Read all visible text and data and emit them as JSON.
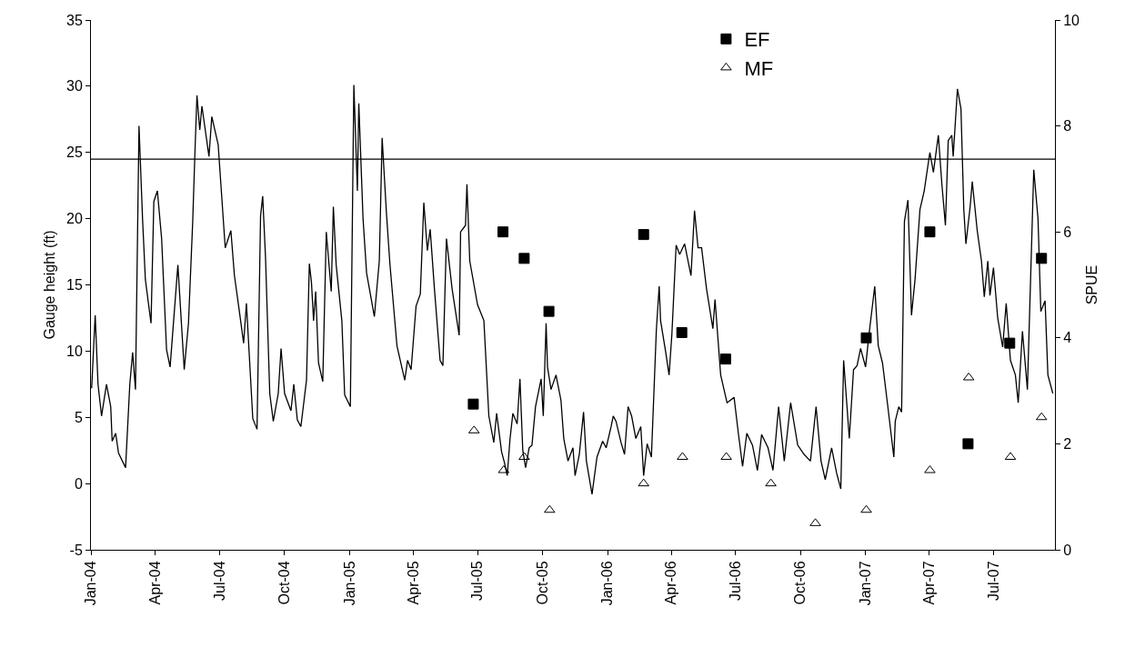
{
  "chart_data": {
    "type": "line",
    "xlabel": null,
    "ylabel": "Gauge height (ft)",
    "y2label": "SPUE",
    "xlim": [
      "2004-01-01",
      "2007-09-26"
    ],
    "xticks": [
      {
        "value": "2004-01-01",
        "label": "Jan-04"
      },
      {
        "value": "2004-04-01",
        "label": "Apr-04"
      },
      {
        "value": "2004-07-01",
        "label": "Jul-04"
      },
      {
        "value": "2004-10-01",
        "label": "Oct-04"
      },
      {
        "value": "2005-01-01",
        "label": "Jan-05"
      },
      {
        "value": "2005-04-01",
        "label": "Apr-05"
      },
      {
        "value": "2005-07-01",
        "label": "Jul-05"
      },
      {
        "value": "2005-10-01",
        "label": "Oct-05"
      },
      {
        "value": "2006-01-01",
        "label": "Jan-06"
      },
      {
        "value": "2006-04-01",
        "label": "Apr-06"
      },
      {
        "value": "2006-07-01",
        "label": "Jul-06"
      },
      {
        "value": "2006-10-01",
        "label": "Oct-06"
      },
      {
        "value": "2007-01-01",
        "label": "Jan-07"
      },
      {
        "value": "2007-04-01",
        "label": "Apr-07"
      },
      {
        "value": "2007-07-01",
        "label": "Jul-07"
      }
    ],
    "ylim": [
      -5,
      35
    ],
    "yticks": [
      -5,
      0,
      5,
      10,
      15,
      20,
      25,
      30,
      35
    ],
    "y2lim": [
      0,
      10
    ],
    "y2ticks": [
      0,
      2,
      4,
      6,
      8,
      10
    ],
    "legend": "top right",
    "ref_lines": [
      {
        "axis": "y",
        "value": 24.5,
        "color": "#000000"
      }
    ],
    "series": [
      {
        "color": "#000000",
        "marker": "none",
        "x": [
          "2004-01-02",
          "2004-01-07",
          "2004-01-11",
          "2004-01-16",
          "2004-01-23",
          "2004-01-29",
          "2004-01-31",
          "2004-02-05",
          "2004-02-09",
          "2004-02-19",
          "2004-02-25",
          "2004-02-29",
          "2004-03-04",
          "2004-03-09",
          "2004-03-14",
          "2004-03-18",
          "2004-03-26",
          "2004-03-30",
          "2004-04-04",
          "2004-04-10",
          "2004-04-17",
          "2004-04-22",
          "2004-05-03",
          "2004-05-12",
          "2004-05-18",
          "2004-05-24",
          "2004-05-27",
          "2004-05-30",
          "2004-06-03",
          "2004-06-06",
          "2004-06-16",
          "2004-06-20",
          "2004-06-29",
          "2004-07-09",
          "2004-07-17",
          "2004-07-22",
          "2004-07-29",
          "2004-08-04",
          "2004-08-08",
          "2004-08-17",
          "2004-08-23",
          "2004-08-28",
          "2004-08-31",
          "2004-09-04",
          "2004-09-10",
          "2004-09-15",
          "2004-09-22",
          "2004-09-26",
          "2004-10-01",
          "2004-10-10",
          "2004-10-14",
          "2004-10-19",
          "2004-10-24",
          "2004-10-27",
          "2004-11-01",
          "2004-11-05",
          "2004-11-08",
          "2004-11-11",
          "2004-11-14",
          "2004-11-18",
          "2004-11-24",
          "2004-11-29",
          "2004-12-06",
          "2004-12-09",
          "2004-12-13",
          "2004-12-21",
          "2004-12-25",
          "2005-01-02",
          "2005-01-07",
          "2005-01-12",
          "2005-01-14",
          "2005-01-20",
          "2005-01-25",
          "2005-02-05",
          "2005-02-12",
          "2005-02-16",
          "2005-02-22",
          "2005-02-27",
          "2005-03-09",
          "2005-03-20",
          "2005-03-24",
          "2005-03-29",
          "2005-04-05",
          "2005-04-11",
          "2005-04-16",
          "2005-04-21",
          "2005-04-25",
          "2005-05-01",
          "2005-05-09",
          "2005-05-13",
          "2005-05-18",
          "2005-05-26",
          "2005-06-05",
          "2005-06-07",
          "2005-06-14",
          "2005-06-16",
          "2005-06-20",
          "2005-07-01",
          "2005-07-10",
          "2005-07-17",
          "2005-07-24",
          "2005-07-28",
          "2005-08-04",
          "2005-08-08",
          "2005-08-12",
          "2005-08-16",
          "2005-08-20",
          "2005-08-26",
          "2005-08-30",
          "2005-09-03",
          "2005-09-07",
          "2005-09-12",
          "2005-09-16",
          "2005-09-21",
          "2005-09-29",
          "2005-10-02",
          "2005-10-06",
          "2005-10-08",
          "2005-10-13",
          "2005-10-20",
          "2005-10-27",
          "2005-10-31",
          "2005-11-06",
          "2005-11-13",
          "2005-11-16",
          "2005-11-22",
          "2005-11-28",
          "2005-12-02",
          "2005-12-10",
          "2005-12-17",
          "2005-12-25",
          "2005-12-30",
          "2006-01-06",
          "2006-01-09",
          "2006-01-13",
          "2006-01-20",
          "2006-01-25",
          "2006-01-30",
          "2006-02-04",
          "2006-02-10",
          "2006-02-17",
          "2006-02-21",
          "2006-02-26",
          "2006-03-04",
          "2006-03-11",
          "2006-03-15",
          "2006-03-17",
          "2006-03-24",
          "2006-03-29",
          "2006-04-02",
          "2006-04-08",
          "2006-04-13",
          "2006-04-20",
          "2006-04-29",
          "2006-05-04",
          "2006-05-09",
          "2006-05-14",
          "2006-05-21",
          "2006-05-30",
          "2006-06-02",
          "2006-06-10",
          "2006-06-19",
          "2006-06-29",
          "2006-07-05",
          "2006-07-11",
          "2006-07-17",
          "2006-07-25",
          "2006-08-01",
          "2006-08-07",
          "2006-08-16",
          "2006-08-23",
          "2006-08-31",
          "2006-09-08",
          "2006-09-17",
          "2006-09-27",
          "2006-10-06",
          "2006-10-15",
          "2006-10-23",
          "2006-10-30",
          "2006-11-05",
          "2006-11-14",
          "2006-11-21",
          "2006-11-27",
          "2006-12-01",
          "2006-12-09",
          "2006-12-15",
          "2006-12-20",
          "2006-12-25",
          "2007-01-01",
          "2007-01-06",
          "2007-01-14",
          "2007-01-19",
          "2007-01-25",
          "2007-02-02",
          "2007-02-10",
          "2007-02-12",
          "2007-02-17",
          "2007-02-21",
          "2007-02-25",
          "2007-03-02",
          "2007-03-07",
          "2007-03-12",
          "2007-03-19",
          "2007-03-25",
          "2007-04-02",
          "2007-04-07",
          "2007-04-14",
          "2007-04-19",
          "2007-04-24",
          "2007-04-28",
          "2007-05-03",
          "2007-05-05",
          "2007-05-11",
          "2007-05-16",
          "2007-05-20",
          "2007-05-23",
          "2007-05-29",
          "2007-06-01",
          "2007-06-08",
          "2007-06-14",
          "2007-06-18",
          "2007-06-23",
          "2007-06-26",
          "2007-07-01",
          "2007-07-07",
          "2007-07-14",
          "2007-07-19",
          "2007-07-25",
          "2007-08-01",
          "2007-08-05",
          "2007-08-11",
          "2007-08-18",
          "2007-08-27",
          "2007-09-02",
          "2007-09-06",
          "2007-09-12",
          "2007-09-16",
          "2007-09-23"
        ],
        "values": [
          7.2,
          12.7,
          7.5,
          5.1,
          7.5,
          5.8,
          3.2,
          3.8,
          2.3,
          1.2,
          7.5,
          9.9,
          7.1,
          27.0,
          20.0,
          15.4,
          12.1,
          21.3,
          22.1,
          18.5,
          10.1,
          8.8,
          16.5,
          8.6,
          12.1,
          19.8,
          24.8,
          29.3,
          26.7,
          28.5,
          24.7,
          27.7,
          25.6,
          17.8,
          19.1,
          15.7,
          13.0,
          10.6,
          13.6,
          4.9,
          4.1,
          20.2,
          21.7,
          17.1,
          6.8,
          4.7,
          6.8,
          10.2,
          6.8,
          5.5,
          7.5,
          4.8,
          4.3,
          5.6,
          7.8,
          16.6,
          15.2,
          12.3,
          14.5,
          9.1,
          7.7,
          19.0,
          14.5,
          20.9,
          16.5,
          12.3,
          6.7,
          5.8,
          30.1,
          22.1,
          28.7,
          20.0,
          15.9,
          12.6,
          16.8,
          26.1,
          20.5,
          16.6,
          10.4,
          7.8,
          9.3,
          8.6,
          13.4,
          14.3,
          21.2,
          17.6,
          19.2,
          14.7,
          9.3,
          8.9,
          18.5,
          14.7,
          11.2,
          19.0,
          19.5,
          22.6,
          16.8,
          13.5,
          12.3,
          5.1,
          3.1,
          5.3,
          2.4,
          1.6,
          0.6,
          3.4,
          5.3,
          4.5,
          7.9,
          2.5,
          1.2,
          2.7,
          2.9,
          5.8,
          7.9,
          5.1,
          12.1,
          8.8,
          7.1,
          8.2,
          6.3,
          3.4,
          1.7,
          2.7,
          0.6,
          2.2,
          5.4,
          1.7,
          -0.8,
          2.0,
          3.2,
          2.7,
          4.3,
          5.1,
          4.7,
          3.1,
          2.2,
          5.8,
          5.1,
          3.4,
          4.3,
          0.6,
          3.0,
          2.0,
          11.6,
          14.9,
          12.3,
          10.0,
          8.2,
          11.3,
          18.0,
          17.3,
          18.1,
          15.7,
          20.6,
          17.8,
          17.8,
          14.7,
          11.7,
          13.9,
          8.2,
          6.1,
          6.5,
          3.8,
          1.3,
          3.8,
          2.9,
          1.0,
          3.7,
          2.7,
          1.0,
          5.8,
          1.7,
          6.1,
          2.9,
          2.2,
          1.7,
          5.8,
          1.7,
          0.3,
          2.7,
          0.8,
          -0.4,
          9.3,
          3.4,
          8.6,
          8.9,
          10.2,
          8.8,
          11.3,
          14.9,
          10.4,
          9.1,
          5.6,
          2.0,
          4.7,
          5.8,
          5.4,
          19.8,
          21.4,
          12.7,
          15.4,
          20.7,
          22.1,
          25.0,
          23.5,
          26.3,
          22.6,
          19.5,
          25.9,
          26.3,
          24.7,
          29.8,
          28.3,
          20.7,
          18.1,
          20.9,
          22.8,
          19.1,
          16.8,
          14.1,
          16.8,
          14.2,
          16.3,
          12.5,
          10.3,
          13.6,
          9.3,
          8.2,
          6.1,
          11.5,
          7.1,
          23.7,
          20.0,
          13.0,
          13.8,
          8.2,
          6.8
        ]
      },
      {
        "type": "scatter",
        "name": "EF",
        "axis": "y2",
        "color": "#000000",
        "marker": "square",
        "x": [
          "2005-06-25",
          "2005-08-06",
          "2005-09-05",
          "2005-10-10",
          "2006-02-21",
          "2006-04-16",
          "2006-06-17",
          "2007-01-02",
          "2007-04-02",
          "2007-05-26",
          "2007-07-24",
          "2007-09-07"
        ],
        "values": [
          2.75,
          6.0,
          5.5,
          4.5,
          5.95,
          4.1,
          3.6,
          4.0,
          6.0,
          2.0,
          3.9,
          5.5
        ]
      },
      {
        "type": "scatter",
        "name": "MF",
        "axis": "y2",
        "color": "#000000",
        "marker": "triangle",
        "x": [
          "2005-06-26",
          "2005-08-07",
          "2005-09-05",
          "2005-10-11",
          "2006-02-21",
          "2006-04-17",
          "2006-06-18",
          "2006-08-20",
          "2006-10-22",
          "2007-01-02",
          "2007-04-02",
          "2007-05-27",
          "2007-07-25",
          "2007-09-07"
        ],
        "values": [
          2.25,
          1.5,
          1.75,
          0.75,
          1.25,
          1.75,
          1.75,
          1.25,
          0.5,
          0.75,
          1.5,
          3.25,
          1.75,
          2.5
        ]
      }
    ]
  }
}
